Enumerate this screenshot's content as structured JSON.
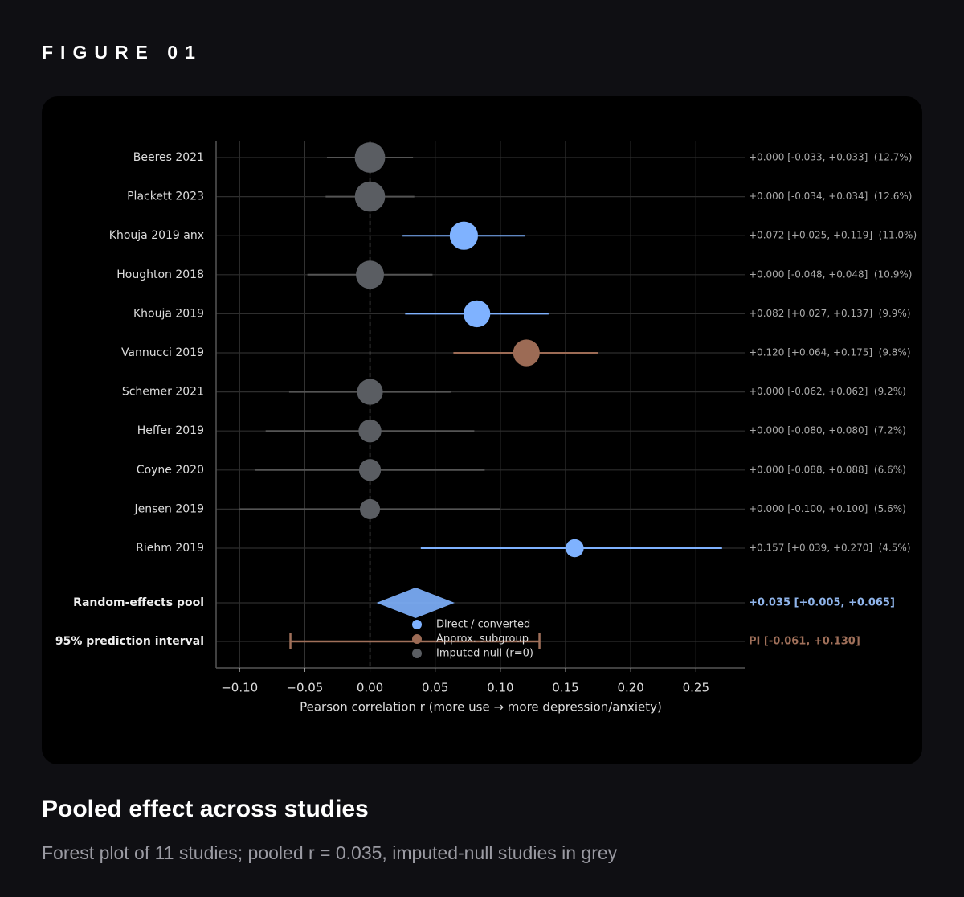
{
  "header": {
    "label": "FIGURE 01"
  },
  "caption": {
    "title": "Pooled effect across studies",
    "subtitle": "Forest plot of 11 studies; pooled r = 0.035, imputed-null studies in grey"
  },
  "chart_data": {
    "type": "forest",
    "xlabel": "Pearson correlation  r  (more use → more depression/anxiety)",
    "categories": [
      "Beeres 2021",
      "Plackett 2023",
      "Khouja 2019 anx",
      "Houghton 2018",
      "Khouja 2019",
      "Vannucci 2019",
      "Schemer 2021",
      "Heffer 2019",
      "Coyne 2020",
      "Jensen 2019",
      "Riehm 2019"
    ],
    "values": [
      0.0,
      0.0,
      0.072,
      0.0,
      0.082,
      0.12,
      0.0,
      0.0,
      0.0,
      0.0,
      0.157
    ],
    "ci_low": [
      -0.033,
      -0.034,
      0.025,
      -0.048,
      0.027,
      0.064,
      -0.062,
      -0.08,
      -0.088,
      -0.1,
      0.039
    ],
    "ci_high": [
      0.033,
      0.034,
      0.119,
      0.048,
      0.137,
      0.175,
      0.062,
      0.08,
      0.088,
      0.1,
      0.27
    ],
    "weights": [
      12.7,
      12.6,
      11.0,
      10.9,
      9.9,
      9.8,
      9.2,
      7.2,
      6.6,
      5.6,
      4.5
    ],
    "value_labels": [
      "+0.000 [-0.033, +0.033]  (12.7%)",
      "+0.000 [-0.034, +0.034]  (12.6%)",
      "+0.072 [+0.025, +0.119]  (11.0%)",
      "+0.000 [-0.048, +0.048]  (10.9%)",
      "+0.082 [+0.027, +0.137]  (9.9%)",
      "+0.120 [+0.064, +0.175]  (9.8%)",
      "+0.000 [-0.062, +0.062]  (9.2%)",
      "+0.000 [-0.080, +0.080]  (7.2%)",
      "+0.000 [-0.088, +0.088]  (6.6%)",
      "+0.000 [-0.100, +0.100]  (5.6%)",
      "+0.157 [+0.039, +0.270]  (4.5%)"
    ],
    "colors": [
      "#5a5d62",
      "#5a5d62",
      "#7fb2ff",
      "#5a5d62",
      "#7fb2ff",
      "#9c6b55",
      "#5a5d62",
      "#5a5d62",
      "#5a5d62",
      "#5a5d62",
      "#7fb2ff"
    ],
    "pooled": {
      "label": "Random-effects pool",
      "value": 0.035,
      "ci_low": 0.005,
      "ci_high": 0.065,
      "value_label": "+0.035 [+0.005, +0.065]",
      "color": "#7fb2ff"
    },
    "prediction": {
      "label": "95% prediction interval",
      "ci_low": -0.061,
      "ci_high": 0.13,
      "value_label": "PI [-0.061, +0.130]",
      "color": "#a0705a"
    },
    "legend": [
      {
        "name": "Direct / converted",
        "color": "#7fb2ff"
      },
      {
        "name": "Approx. subgroup",
        "color": "#9c6b55"
      },
      {
        "name": "Imputed null (r=0)",
        "color": "#5a5d62"
      }
    ],
    "xlim": [
      -0.118,
      0.288
    ],
    "xticks": [
      {
        "value": -0.1,
        "label": "−0.10"
      },
      {
        "value": -0.05,
        "label": "−0.05"
      },
      {
        "value": 0.0,
        "label": "0.00"
      },
      {
        "value": 0.05,
        "label": "0.05"
      },
      {
        "value": 0.1,
        "label": "0.10"
      },
      {
        "value": 0.15,
        "label": "0.15"
      },
      {
        "value": 0.2,
        "label": "0.20"
      },
      {
        "value": 0.25,
        "label": "0.25"
      }
    ],
    "grid": true
  }
}
